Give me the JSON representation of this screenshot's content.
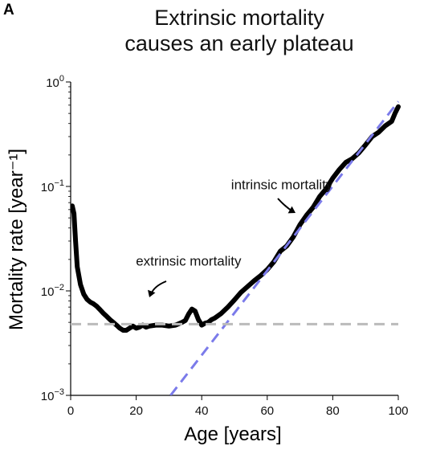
{
  "panel_label": "A",
  "title_lines": [
    "Extrinsic mortality",
    "causes an early plateau"
  ],
  "colors": {
    "data": "#000000",
    "intrinsic": "#7b7bea",
    "extrinsic": "#bbbbbb"
  },
  "chart_data": {
    "type": "line",
    "title": "Extrinsic mortality causes an early plateau",
    "xlabel": "Age [years]",
    "ylabel": "Mortality rate [year⁻¹]",
    "xlim": [
      0,
      100
    ],
    "ylim": [
      0.001,
      1
    ],
    "yscale": "log",
    "xticks": [
      0,
      20,
      40,
      60,
      80,
      100
    ],
    "yticks": [
      {
        "value": 0.001,
        "base": "10",
        "exp": "−3"
      },
      {
        "value": 0.01,
        "base": "10",
        "exp": "−2"
      },
      {
        "value": 0.1,
        "base": "10",
        "exp": "−1"
      },
      {
        "value": 1,
        "base": "10",
        "exp": "0"
      }
    ],
    "grid": false,
    "series": [
      {
        "style": "solid",
        "x": [
          0.5,
          1,
          1.5,
          2,
          3,
          4,
          5,
          6,
          7,
          8,
          9,
          10,
          11,
          12,
          13,
          14,
          15,
          16,
          17,
          18,
          19,
          20,
          21,
          22,
          23,
          24,
          26,
          28,
          30,
          32,
          34,
          35,
          36,
          37,
          38,
          39,
          40,
          41,
          42,
          43,
          44,
          46,
          48,
          50,
          52,
          54,
          56,
          58,
          60,
          62,
          64,
          66,
          68,
          70,
          72,
          74,
          76,
          78,
          80,
          82,
          84,
          86,
          88,
          90,
          92,
          94,
          96,
          98,
          99,
          100
        ],
        "y": [
          0.065,
          0.055,
          0.03,
          0.017,
          0.0115,
          0.0093,
          0.0083,
          0.0078,
          0.0075,
          0.0071,
          0.0066,
          0.0061,
          0.0057,
          0.0053,
          0.005,
          0.0047,
          0.0044,
          0.0042,
          0.0042,
          0.0044,
          0.0046,
          0.0044,
          0.0045,
          0.0047,
          0.0045,
          0.0046,
          0.0047,
          0.0047,
          0.0046,
          0.0047,
          0.005,
          0.0052,
          0.006,
          0.0067,
          0.0064,
          0.0053,
          0.0047,
          0.0049,
          0.005,
          0.0053,
          0.0055,
          0.0061,
          0.007,
          0.0082,
          0.0097,
          0.011,
          0.0125,
          0.014,
          0.016,
          0.019,
          0.024,
          0.027,
          0.033,
          0.043,
          0.053,
          0.063,
          0.08,
          0.095,
          0.12,
          0.145,
          0.17,
          0.185,
          0.21,
          0.25,
          0.3,
          0.33,
          0.38,
          0.42,
          0.5,
          0.58
        ]
      },
      {
        "style": "dashed",
        "color": "#7b7bea",
        "x": [
          30.5,
          100
        ],
        "y": [
          0.001,
          0.65
        ]
      },
      {
        "style": "dashed",
        "color": "#bbbbbb",
        "x": [
          0,
          100
        ],
        "y": [
          0.0048,
          0.0048
        ]
      }
    ],
    "annotations": [
      {
        "text": "intrinsic mortality",
        "x": 80,
        "y": 0.094
      },
      {
        "text": "extrinsic mortality",
        "x": 36,
        "y": 0.0175
      }
    ]
  }
}
